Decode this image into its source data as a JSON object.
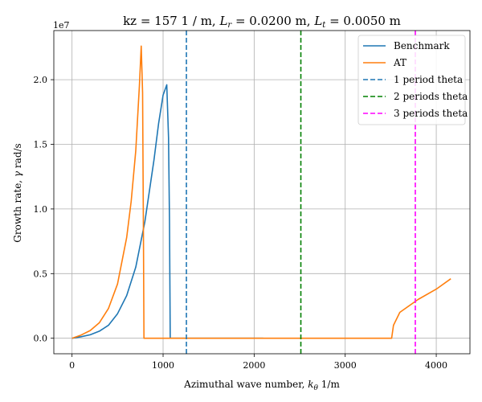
{
  "chart_data": {
    "type": "line",
    "title": "kz =  157 1 / m, L_r = 0.0200 m, L_t = 0.0050 m",
    "title_parts": {
      "prefix": "kz =  157 1 / m, ",
      "lr_symbol": "L",
      "lr_sub": "r",
      "lr_value": " = 0.0200 m, ",
      "lt_symbol": "L",
      "lt_sub": "t",
      "lt_value": " = 0.0050 m"
    },
    "xlabel_parts": {
      "text": "Azimuthal wave number, ",
      "symbol": "k",
      "sub": "θ",
      "unit": " 1/m"
    },
    "ylabel_parts": {
      "text": "Growth rate, ",
      "symbol": "γ",
      "unit": " rad/s"
    },
    "y_scale_label": "1e7",
    "xlim": [
      -200,
      4370
    ],
    "ylim": [
      -0.12,
      2.38
    ],
    "xticks": [
      0,
      1000,
      2000,
      3000,
      4000
    ],
    "xtick_labels": [
      "0",
      "1000",
      "2000",
      "3000",
      "4000"
    ],
    "yticks": [
      0.0,
      0.5,
      1.0,
      1.5,
      2.0
    ],
    "ytick_labels": [
      "0.0",
      "0.5",
      "1.0",
      "1.5",
      "2.0"
    ],
    "grid": true,
    "legend_position": "top-right",
    "series": [
      {
        "name": "Benchmark",
        "color": "#1f77b4",
        "style": "solid",
        "points": [
          [
            0,
            0
          ],
          [
            100,
            0.012
          ],
          [
            200,
            0.027
          ],
          [
            300,
            0.055
          ],
          [
            400,
            0.1
          ],
          [
            500,
            0.19
          ],
          [
            600,
            0.33
          ],
          [
            700,
            0.55
          ],
          [
            800,
            0.9
          ],
          [
            900,
            1.38
          ],
          [
            950,
            1.66
          ],
          [
            1000,
            1.88
          ],
          [
            1040,
            1.96
          ],
          [
            1060,
            1.55
          ],
          [
            1070,
            0.9
          ],
          [
            1075,
            0.4
          ],
          [
            1078,
            0
          ],
          [
            1200,
            0
          ],
          [
            1500,
            0
          ],
          [
            2100,
            0
          ]
        ]
      },
      {
        "name": "AT",
        "color": "#ff7f0e",
        "style": "solid",
        "points": [
          [
            0,
            0
          ],
          [
            100,
            0.025
          ],
          [
            200,
            0.06
          ],
          [
            300,
            0.12
          ],
          [
            400,
            0.23
          ],
          [
            500,
            0.42
          ],
          [
            600,
            0.78
          ],
          [
            650,
            1.06
          ],
          [
            700,
            1.45
          ],
          [
            740,
            1.95
          ],
          [
            760,
            2.26
          ],
          [
            775,
            1.9
          ],
          [
            785,
            0.75
          ],
          [
            790,
            0
          ],
          [
            1500,
            0
          ],
          [
            2500,
            0
          ],
          [
            3510,
            0
          ],
          [
            3530,
            0.1
          ],
          [
            3600,
            0.2
          ],
          [
            3800,
            0.3
          ],
          [
            4000,
            0.38
          ],
          [
            4160,
            0.46
          ]
        ]
      },
      {
        "name": "1 period theta",
        "color": "#1f77b4",
        "style": "dashed",
        "vline_x": 1256
      },
      {
        "name": "2 periods theta",
        "color": "#008000",
        "style": "dashed",
        "vline_x": 2513
      },
      {
        "name": "3 periods theta",
        "color": "#ff00ff",
        "style": "dashed",
        "vline_x": 3770
      }
    ]
  }
}
